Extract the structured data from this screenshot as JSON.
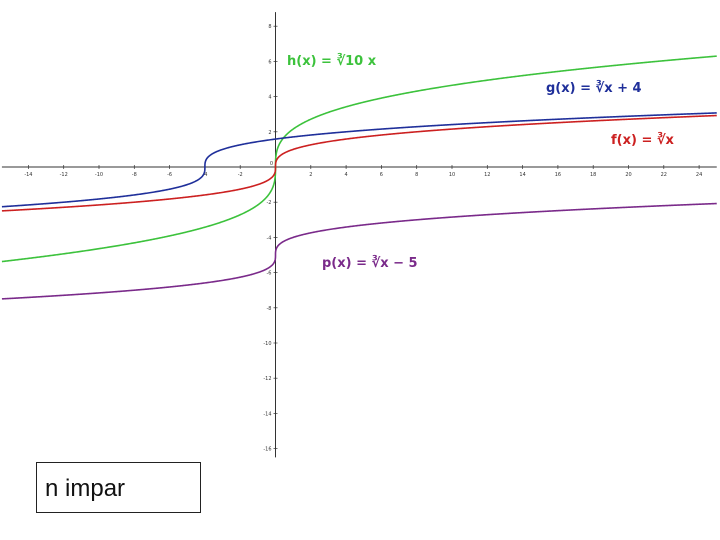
{
  "chart_data": {
    "type": "line",
    "xlim": [
      -15.5,
      25
    ],
    "ylim": [
      -16.5,
      8.8
    ],
    "x_ticks": [
      -14,
      -12,
      -10,
      -8,
      -6,
      -4,
      -2,
      2,
      4,
      6,
      8,
      10,
      12,
      14,
      16,
      18,
      20,
      22,
      24
    ],
    "y_ticks": [
      8,
      6,
      4,
      2,
      0,
      -2,
      -4,
      -6,
      -8,
      -10,
      -12,
      -14,
      -16
    ],
    "grid": false,
    "series": [
      {
        "id": "h",
        "formula": "cbrt(10x)",
        "color": "#3cc23c",
        "x": [
          -15.5,
          -10,
          -5,
          -1,
          -0.1,
          0,
          0.1,
          1,
          5,
          10,
          15,
          20,
          25
        ],
        "y": [
          -5.37,
          -4.64,
          -3.68,
          -2.15,
          -1.0,
          0,
          1.0,
          2.15,
          3.68,
          4.64,
          5.31,
          5.85,
          6.3
        ]
      },
      {
        "id": "g",
        "formula": "cbrt(x+4)",
        "color": "#1f2f9a",
        "x": [
          -15.5,
          -10,
          -6,
          -4.5,
          -4,
          -3.5,
          -2,
          0,
          5,
          10,
          15,
          20,
          25
        ],
        "y": [
          -2.26,
          -1.82,
          -1.26,
          -0.79,
          0,
          0.79,
          1.26,
          1.59,
          2.08,
          2.41,
          2.67,
          2.88,
          3.07
        ]
      },
      {
        "id": "f",
        "formula": "cbrt(x)",
        "color": "#cc2020",
        "x": [
          -15.5,
          -10,
          -5,
          -1,
          -0.1,
          0,
          0.1,
          1,
          5,
          10,
          15,
          20,
          25
        ],
        "y": [
          -2.49,
          -2.15,
          -1.71,
          -1.0,
          -0.46,
          0,
          0.46,
          1.0,
          1.71,
          2.15,
          2.47,
          2.71,
          2.92
        ]
      },
      {
        "id": "p",
        "formula": "cbrt(x)-5",
        "color": "#7a2a8a",
        "x": [
          -15.5,
          -10,
          -5,
          -1,
          -0.1,
          0,
          0.1,
          1,
          5,
          10,
          15,
          20,
          25
        ],
        "y": [
          -7.49,
          -7.15,
          -6.71,
          -6.0,
          -5.46,
          -5,
          -4.54,
          -4.0,
          -3.29,
          -2.85,
          -2.53,
          -2.29,
          -2.08
        ]
      }
    ],
    "annotations": [
      {
        "id": "h",
        "label": "h(x) = ∛10 x",
        "color": "#3cc23c"
      },
      {
        "id": "g",
        "label": "g(x) = ∛x + 4",
        "color": "#1f2f9a"
      },
      {
        "id": "f",
        "label": "f(x) = ∛x",
        "color": "#cc2020"
      },
      {
        "id": "p",
        "label": "p(x) = ∛x − 5",
        "color": "#7a2a8a"
      }
    ]
  },
  "caption": "n impar"
}
